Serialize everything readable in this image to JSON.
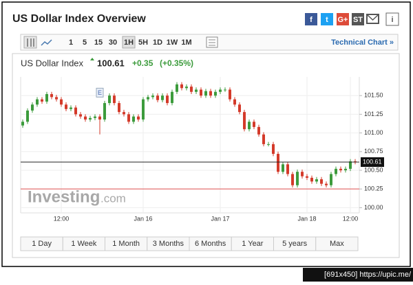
{
  "header": {
    "title": "US Dollar Index Overview",
    "share_icons": [
      "f",
      "t",
      "G+",
      "ST",
      "i"
    ]
  },
  "toolbar": {
    "intervals": [
      "1",
      "5",
      "15",
      "30",
      "1H",
      "5H",
      "1D",
      "1W",
      "1M"
    ],
    "selected": 4,
    "link": "Technical Chart »"
  },
  "quote": {
    "name": "US Dollar Index",
    "price": 100.61,
    "change": "+0.35",
    "change_pct": "(+0.35%)"
  },
  "watermark": {
    "brand": "Investing",
    "suffix": ".com"
  },
  "ranges": [
    "1 Day",
    "1 Week",
    "1 Month",
    "3 Months",
    "6 Months",
    "1 Year",
    "5 years",
    "Max"
  ],
  "footer_tag": "[691x450] https://upic.me/",
  "chart_data": {
    "type": "candlestick",
    "categories": [
      null,
      null,
      null,
      null,
      null,
      null,
      null,
      null,
      "12:00",
      null,
      null,
      null,
      null,
      null,
      null,
      null,
      null,
      null,
      null,
      null,
      null,
      null,
      null,
      null,
      null,
      "Jan 16",
      null,
      null,
      null,
      null,
      null,
      null,
      null,
      null,
      null,
      null,
      null,
      null,
      null,
      null,
      null,
      "Jan 17",
      null,
      null,
      null,
      null,
      null,
      null,
      null,
      null,
      null,
      null,
      null,
      null,
      null,
      null,
      null,
      null,
      null,
      "Jan 18",
      null,
      null,
      null,
      null,
      null,
      null,
      null,
      null,
      "12:00",
      null
    ],
    "open": [
      101.1,
      101.15,
      101.3,
      101.38,
      101.45,
      101.42,
      101.52,
      101.48,
      101.45,
      101.38,
      101.32,
      101.34,
      101.25,
      101.22,
      101.18,
      101.2,
      101.22,
      101.18,
      101.4,
      101.5,
      101.4,
      101.28,
      101.25,
      101.15,
      101.22,
      101.18,
      101.45,
      101.48,
      101.5,
      101.44,
      101.5,
      101.4,
      101.55,
      101.65,
      101.6,
      101.62,
      101.55,
      101.58,
      101.5,
      101.56,
      101.5,
      101.55,
      101.58,
      101.58,
      101.45,
      101.38,
      101.28,
      101.05,
      101.15,
      101.08,
      100.98,
      100.85,
      100.85,
      100.72,
      100.48,
      100.58,
      100.45,
      100.3,
      100.48,
      100.42,
      100.4,
      100.35,
      100.38,
      100.32,
      100.3,
      100.45,
      100.52,
      100.5,
      100.52,
      100.62
    ],
    "high": [
      101.18,
      101.33,
      101.41,
      101.48,
      101.48,
      101.55,
      101.55,
      101.51,
      101.48,
      101.41,
      101.37,
      101.37,
      101.28,
      101.25,
      101.23,
      101.25,
      101.25,
      101.43,
      101.53,
      101.53,
      101.43,
      101.31,
      101.28,
      101.25,
      101.25,
      101.48,
      101.51,
      101.53,
      101.53,
      101.53,
      101.53,
      101.58,
      101.68,
      101.68,
      101.65,
      101.65,
      101.61,
      101.61,
      101.59,
      101.59,
      101.58,
      101.61,
      101.61,
      101.61,
      101.48,
      101.41,
      101.31,
      101.18,
      101.18,
      101.11,
      101.01,
      100.88,
      100.88,
      100.75,
      100.61,
      100.61,
      100.48,
      100.51,
      100.51,
      100.45,
      100.43,
      100.41,
      100.41,
      100.35,
      100.48,
      100.55,
      100.55,
      100.55,
      100.65,
      100.65
    ],
    "low": [
      101.07,
      101.12,
      101.27,
      101.35,
      101.39,
      101.39,
      101.45,
      101.42,
      101.35,
      101.29,
      101.29,
      101.22,
      101.19,
      101.15,
      101.15,
      101.17,
      100.98,
      101.15,
      101.37,
      101.37,
      101.25,
      101.22,
      101.12,
      101.12,
      101.15,
      101.15,
      101.42,
      101.45,
      101.41,
      101.41,
      101.37,
      101.37,
      101.52,
      101.57,
      101.57,
      101.52,
      101.52,
      101.47,
      101.47,
      101.47,
      101.47,
      101.52,
      101.55,
      101.42,
      101.35,
      101.25,
      101.02,
      101.02,
      101.05,
      100.95,
      100.82,
      100.82,
      100.69,
      100.45,
      100.45,
      100.42,
      100.27,
      100.27,
      100.39,
      100.37,
      100.32,
      100.32,
      100.29,
      100.27,
      100.27,
      100.42,
      100.47,
      100.47,
      100.49,
      100.58
    ],
    "close": [
      101.15,
      101.3,
      101.38,
      101.45,
      101.42,
      101.52,
      101.48,
      101.45,
      101.38,
      101.32,
      101.34,
      101.25,
      101.22,
      101.18,
      101.2,
      101.22,
      101.18,
      101.4,
      101.5,
      101.4,
      101.28,
      101.25,
      101.15,
      101.22,
      101.18,
      101.45,
      101.48,
      101.5,
      101.44,
      101.5,
      101.4,
      101.55,
      101.65,
      101.6,
      101.62,
      101.55,
      101.58,
      101.5,
      101.56,
      101.5,
      101.55,
      101.58,
      101.58,
      101.45,
      101.38,
      101.28,
      101.05,
      101.15,
      101.08,
      100.98,
      100.85,
      100.85,
      100.72,
      100.48,
      100.58,
      100.45,
      100.3,
      100.48,
      100.42,
      100.4,
      100.35,
      100.38,
      100.32,
      100.3,
      100.45,
      100.52,
      100.5,
      100.52,
      100.62,
      100.61
    ],
    "up_color": "#3c9b3c",
    "down_color": "#d43a2a",
    "event_marker": {
      "label": "E",
      "index": 16
    },
    "last_price": 100.61,
    "last_price_label": "100.61",
    "red_line": 100.25,
    "ylim": [
      99.93,
      101.75
    ],
    "yticks": [
      {
        "value": 100,
        "label": "100.00"
      },
      {
        "value": 100.25,
        "label": "100.25"
      },
      {
        "value": 100.5,
        "label": "100.50"
      },
      {
        "value": 100.75,
        "label": "100.75"
      },
      {
        "value": 101,
        "label": "101.00"
      },
      {
        "value": 101.25,
        "label": "101.25"
      },
      {
        "value": 101.5,
        "label": "101.50"
      }
    ],
    "grid": true
  }
}
